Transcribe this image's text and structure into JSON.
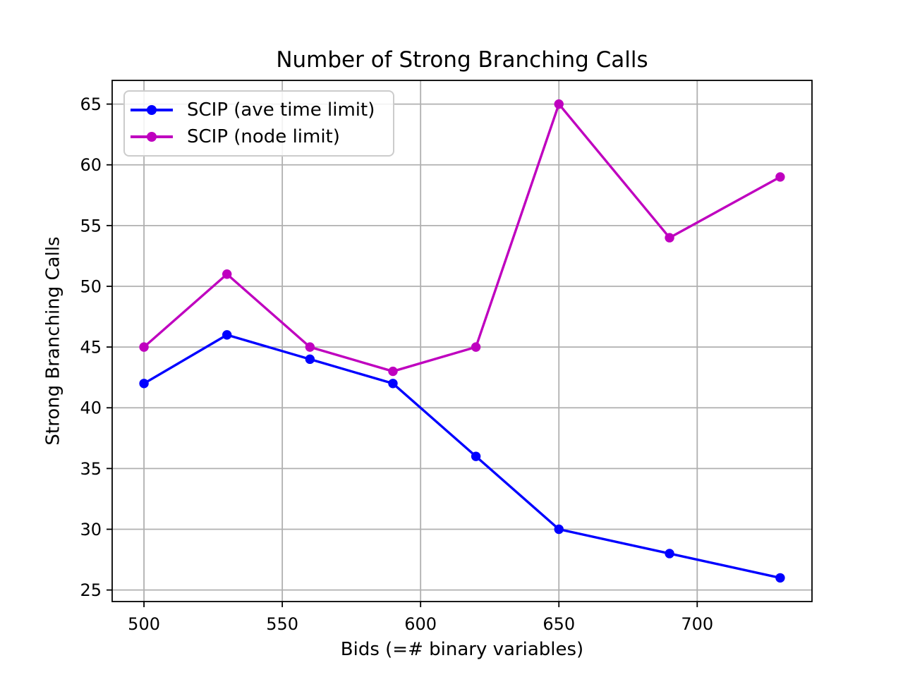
{
  "figure": {
    "background": "#ffffff",
    "text_color": "#000000"
  },
  "chart_data": {
    "type": "line",
    "title": "Number of Strong Branching Calls",
    "xlabel": "Bids (=# binary variables)",
    "ylabel": "Strong Branching Calls",
    "x": [
      500,
      530,
      560,
      590,
      620,
      650,
      690,
      730
    ],
    "series": [
      {
        "name": "SCIP (ave time limit)",
        "color": "#0000ff",
        "marker": "circle",
        "values": [
          42,
          46,
          44,
          42,
          36,
          30,
          28,
          26
        ]
      },
      {
        "name": "SCIP (node limit)",
        "color": "#bf00bf",
        "marker": "circle",
        "values": [
          45,
          51,
          45,
          43,
          45,
          65,
          54,
          59
        ]
      }
    ],
    "xticks": [
      500,
      550,
      600,
      650,
      700
    ],
    "yticks": [
      25,
      30,
      35,
      40,
      45,
      50,
      55,
      60,
      65
    ],
    "xlim": [
      488.5,
      741.5
    ],
    "ylim": [
      24.05,
      66.95
    ],
    "grid": true,
    "grid_color": "#b0b0b0",
    "spine_color": "#000000",
    "tick_label_color": "#000000",
    "legend_position": "upper-left"
  }
}
